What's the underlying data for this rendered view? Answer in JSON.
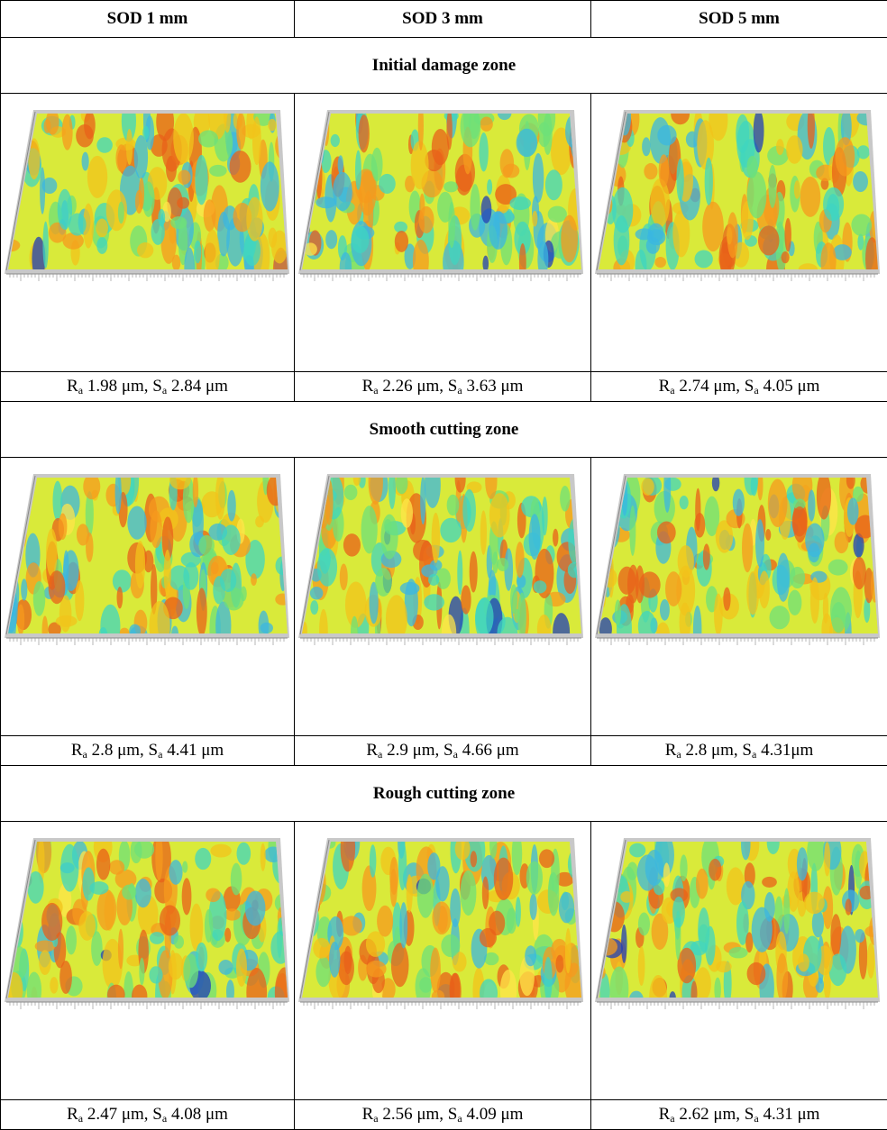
{
  "table": {
    "header": [
      "SOD 1 mm",
      "SOD 3 mm",
      "SOD 5 mm"
    ],
    "sections": [
      {
        "title": "Initial damage zone",
        "captions": [
          [
            {
              "text": "R"
            },
            {
              "sub": "a"
            },
            {
              "text": " 1.98 μm, S"
            },
            {
              "sub": "a"
            },
            {
              "text": " 2.84 μm"
            }
          ],
          [
            {
              "text": "R"
            },
            {
              "sub": "a"
            },
            {
              "text": " 2.26 μm, S"
            },
            {
              "sub": "a"
            },
            {
              "text": " 3.63 μm"
            }
          ],
          [
            {
              "text": "R"
            },
            {
              "sub": "a"
            },
            {
              "text": " 2.74 μm, S"
            },
            {
              "sub": "a"
            },
            {
              "text": " 4.05 μm"
            }
          ]
        ]
      },
      {
        "title": "Smooth cutting zone",
        "captions": [
          [
            {
              "text": "R"
            },
            {
              "sub": "a"
            },
            {
              "text": " 2.8 μm, S"
            },
            {
              "sub": "a"
            },
            {
              "text": " 4.41 μm"
            }
          ],
          [
            {
              "text": "R"
            },
            {
              "sub": "a"
            },
            {
              "text": " 2.9 μm, S"
            },
            {
              "sub": "a"
            },
            {
              "text": " 4.66 μm"
            }
          ],
          [
            {
              "text": "R"
            },
            {
              "sub": "a"
            },
            {
              "text": " 2.8 μm, S"
            },
            {
              "sub": "a"
            },
            {
              "text": " 4.31μm"
            }
          ]
        ]
      },
      {
        "title": "Rough cutting zone",
        "captions": [
          [
            {
              "text": "R"
            },
            {
              "sub": "a"
            },
            {
              "text": " 2.47 μm, S"
            },
            {
              "sub": "a"
            },
            {
              "text": " 4.08 μm"
            }
          ],
          [
            {
              "text": "R"
            },
            {
              "sub": "a"
            },
            {
              "text": " 2.56 μm, S"
            },
            {
              "sub": "a"
            },
            {
              "text": " 4.09 μm"
            }
          ],
          [
            {
              "text": "R"
            },
            {
              "sub": "a"
            },
            {
              "text": " 2.62 μm, S"
            },
            {
              "sub": "a"
            },
            {
              "text": " 4.31 μm"
            }
          ]
        ]
      }
    ]
  }
}
